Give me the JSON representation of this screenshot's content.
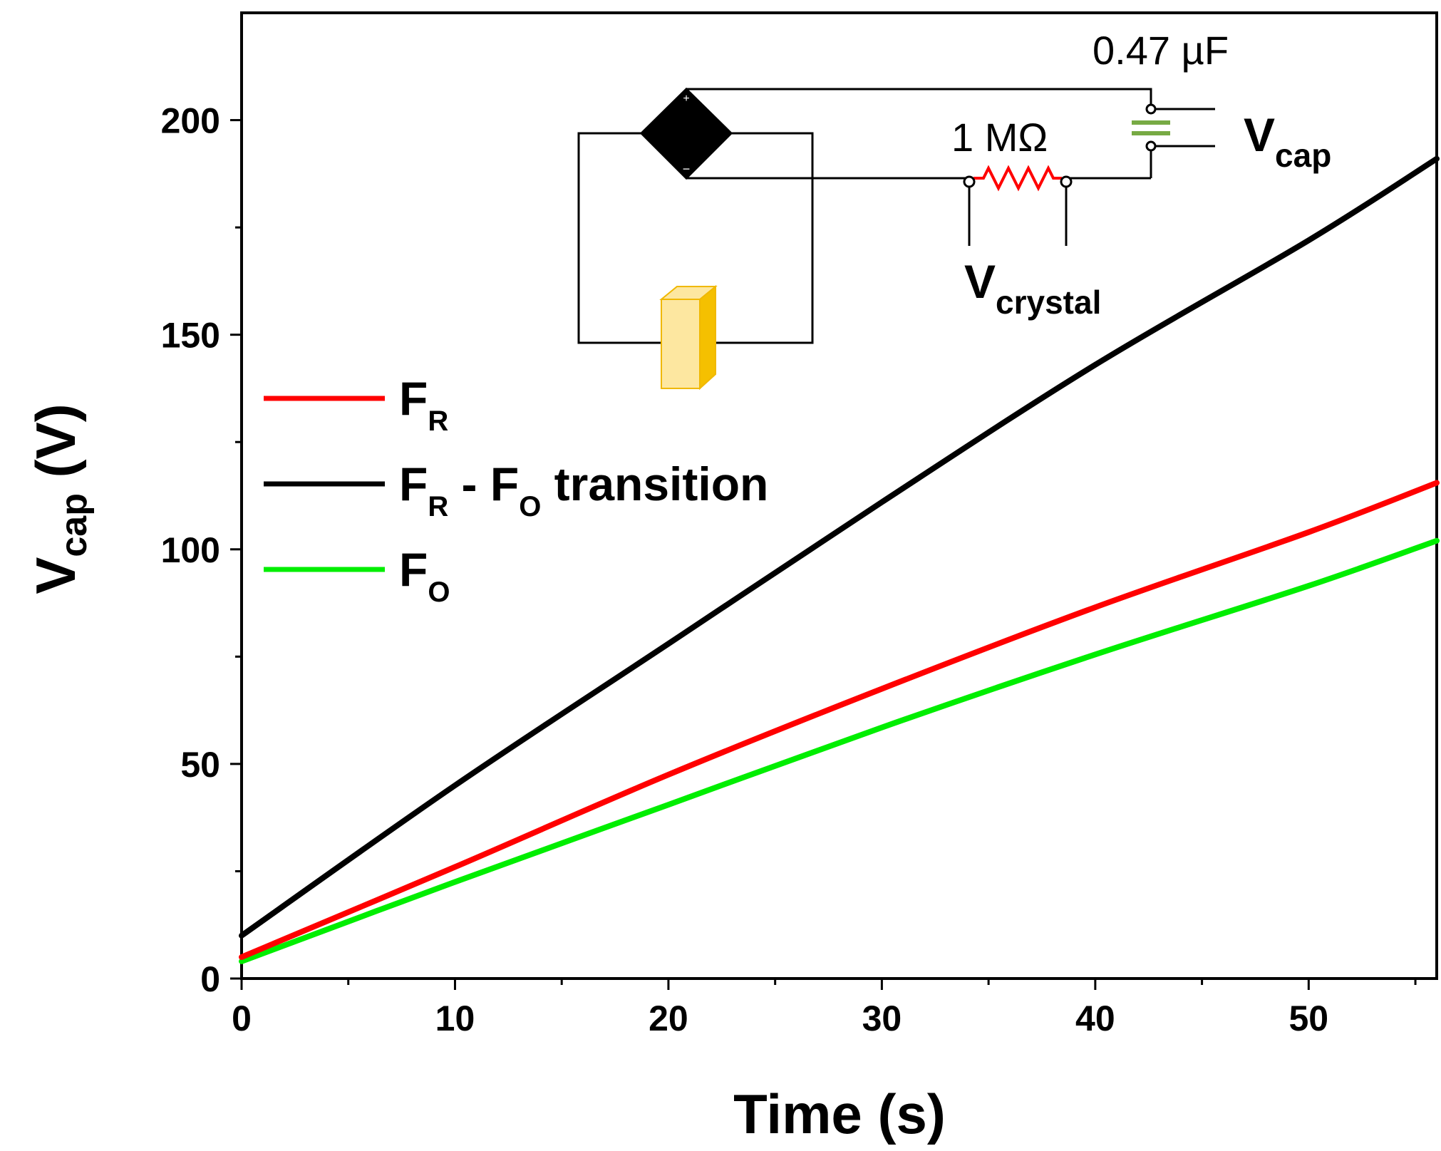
{
  "chart_data": {
    "type": "line",
    "title": "",
    "xlabel": "Time (s)",
    "ylabel_main": "V",
    "ylabel_sub": "cap",
    "ylabel_unit": " (V)",
    "xlim": [
      0,
      56
    ],
    "ylim": [
      0,
      225
    ],
    "x_ticks": [
      0,
      10,
      20,
      30,
      40,
      50
    ],
    "x_tick_labels": [
      "0",
      "10",
      "20",
      "30",
      "40",
      "50"
    ],
    "x_minor_ticks": [
      5,
      15,
      25,
      35,
      45,
      55
    ],
    "y_ticks": [
      0,
      50,
      100,
      150,
      200
    ],
    "y_tick_labels": [
      "0",
      "50",
      "100",
      "150",
      "200"
    ],
    "y_minor_ticks": [
      25,
      75,
      125,
      175
    ],
    "grid": false,
    "legend_position": "left-middle",
    "series": [
      {
        "name": "F_R",
        "label_main": "F",
        "label_sub": "R",
        "label_rest": "",
        "color": "#ff0000",
        "x": [
          0,
          10,
          20,
          30,
          40,
          50,
          56
        ],
        "values": [
          5,
          26,
          47.5,
          67.5,
          86.5,
          104,
          115.5
        ]
      },
      {
        "name": "F_R - F_O transition",
        "label_main": "F",
        "label_sub": "R",
        "label_mid": " - F",
        "label_sub2": "O",
        "label_rest": " transition",
        "color": "#000000",
        "x": [
          0,
          10,
          20,
          30,
          40,
          50,
          56
        ],
        "values": [
          10,
          45,
          78,
          111,
          143,
          172,
          191
        ]
      },
      {
        "name": "F_O",
        "label_main": "F",
        "label_sub": "O",
        "label_rest": "",
        "color": "#00ee00",
        "x": [
          0,
          10,
          20,
          30,
          40,
          50,
          56
        ],
        "values": [
          4,
          22.5,
          40.5,
          58.5,
          75.5,
          91.5,
          102
        ]
      }
    ],
    "inset": {
      "capacitor_label": "0.47 µF",
      "resistor_label": "1 MΩ",
      "vcap_main": "V",
      "vcap_sub": "cap",
      "vcrystal_main": "V",
      "vcrystal_sub": "crystal",
      "colors": {
        "resistor": "#ff0000",
        "capacitor": "#77aa44",
        "crystal_front": "#fde7a0",
        "crystal_side": "#f5c000",
        "crystal_edge": "#f0b800"
      }
    }
  }
}
